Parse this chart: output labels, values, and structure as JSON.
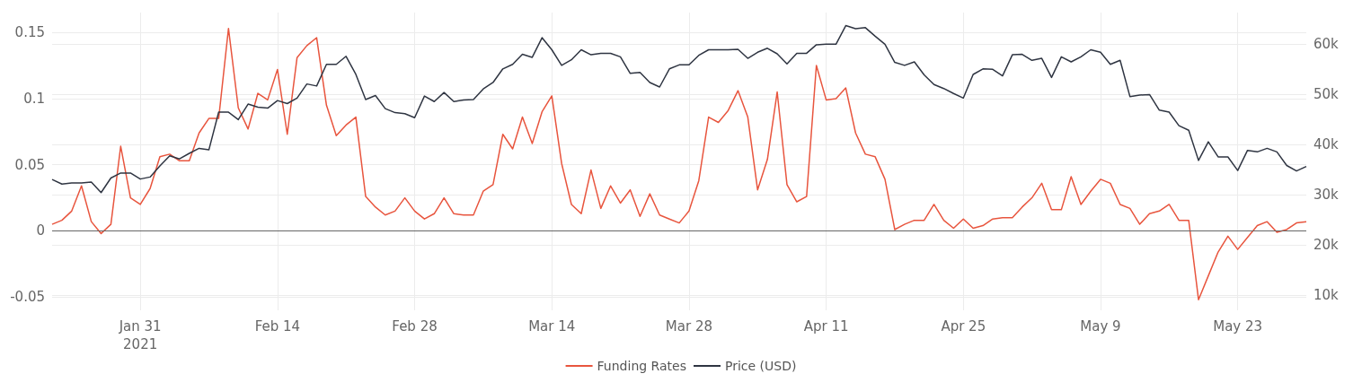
{
  "chart_data": {
    "type": "line",
    "x": [
      "2021-01-22",
      "2021-01-23",
      "2021-01-24",
      "2021-01-25",
      "2021-01-26",
      "2021-01-27",
      "2021-01-28",
      "2021-01-29",
      "2021-01-30",
      "2021-01-31",
      "2021-02-01",
      "2021-02-02",
      "2021-02-03",
      "2021-02-04",
      "2021-02-05",
      "2021-02-06",
      "2021-02-07",
      "2021-02-08",
      "2021-02-09",
      "2021-02-10",
      "2021-02-11",
      "2021-02-12",
      "2021-02-13",
      "2021-02-14",
      "2021-02-15",
      "2021-02-16",
      "2021-02-17",
      "2021-02-18",
      "2021-02-19",
      "2021-02-20",
      "2021-02-21",
      "2021-02-22",
      "2021-02-23",
      "2021-02-24",
      "2021-02-25",
      "2021-02-26",
      "2021-02-27",
      "2021-02-28",
      "2021-03-01",
      "2021-03-02",
      "2021-03-03",
      "2021-03-04",
      "2021-03-05",
      "2021-03-06",
      "2021-03-07",
      "2021-03-08",
      "2021-03-09",
      "2021-03-10",
      "2021-03-11",
      "2021-03-12",
      "2021-03-13",
      "2021-03-14",
      "2021-03-15",
      "2021-03-16",
      "2021-03-17",
      "2021-03-18",
      "2021-03-19",
      "2021-03-20",
      "2021-03-21",
      "2021-03-22",
      "2021-03-23",
      "2021-03-24",
      "2021-03-25",
      "2021-03-26",
      "2021-03-27",
      "2021-03-28",
      "2021-03-29",
      "2021-03-30",
      "2021-03-31",
      "2021-04-01",
      "2021-04-02",
      "2021-04-03",
      "2021-04-04",
      "2021-04-05",
      "2021-04-06",
      "2021-04-07",
      "2021-04-08",
      "2021-04-09",
      "2021-04-10",
      "2021-04-11",
      "2021-04-12",
      "2021-04-13",
      "2021-04-14",
      "2021-04-15",
      "2021-04-16",
      "2021-04-17",
      "2021-04-18",
      "2021-04-19",
      "2021-04-20",
      "2021-04-21",
      "2021-04-22",
      "2021-04-23",
      "2021-04-24",
      "2021-04-25",
      "2021-04-26",
      "2021-04-27",
      "2021-04-28",
      "2021-04-29",
      "2021-04-30",
      "2021-05-01",
      "2021-05-02",
      "2021-05-03",
      "2021-05-04",
      "2021-05-05",
      "2021-05-06",
      "2021-05-07",
      "2021-05-08",
      "2021-05-09",
      "2021-05-10",
      "2021-05-11",
      "2021-05-12",
      "2021-05-13",
      "2021-05-14",
      "2021-05-15",
      "2021-05-16",
      "2021-05-17",
      "2021-05-18",
      "2021-05-19",
      "2021-05-20",
      "2021-05-21",
      "2021-05-22",
      "2021-05-23",
      "2021-05-24",
      "2021-05-25",
      "2021-05-26",
      "2021-05-27",
      "2021-05-28",
      "2021-05-29",
      "2021-05-30"
    ],
    "series": [
      {
        "name": "Funding Rates",
        "color": "#e8553e",
        "values": [
          0.005,
          0.008,
          0.015,
          0.034,
          0.007,
          -0.002,
          0.005,
          0.064,
          0.025,
          0.02,
          0.032,
          0.056,
          0.058,
          0.053,
          0.053,
          0.074,
          0.085,
          0.085,
          0.153,
          0.093,
          0.077,
          0.104,
          0.099,
          0.122,
          0.073,
          0.131,
          0.14,
          0.146,
          0.095,
          0.072,
          0.08,
          0.086,
          0.026,
          0.018,
          0.012,
          0.015,
          0.025,
          0.015,
          0.009,
          0.013,
          0.025,
          0.013,
          0.012,
          0.012,
          0.03,
          0.035,
          0.073,
          0.062,
          0.086,
          0.066,
          0.09,
          0.102,
          0.051,
          0.02,
          0.013,
          0.046,
          0.017,
          0.034,
          0.021,
          0.031,
          0.011,
          0.028,
          0.012,
          0.009,
          0.006,
          0.015,
          0.038,
          0.086,
          0.082,
          0.091,
          0.106,
          0.086,
          0.031,
          0.054,
          0.105,
          0.035,
          0.022,
          0.026,
          0.125,
          0.099,
          0.1,
          0.108,
          0.074,
          0.058,
          0.056,
          0.039,
          0.001,
          0.005,
          0.008,
          0.008,
          0.02,
          0.008,
          0.002,
          0.009,
          0.002,
          0.004,
          0.009,
          0.01,
          0.01,
          0.018,
          0.025,
          0.036,
          0.016,
          0.016,
          0.041,
          0.02,
          0.03,
          0.039,
          0.036,
          0.02,
          0.017,
          0.005,
          0.013,
          0.015,
          0.02,
          0.008,
          0.008,
          -0.052,
          -0.034,
          -0.016,
          -0.004,
          -0.014,
          -0.005,
          0.004,
          0.007,
          -0.001,
          0.001,
          0.006,
          0.007
        ]
      },
      {
        "name": "Price (USD)",
        "color": "#2f3542",
        "axis": "y2",
        "values": [
          33000,
          32100,
          32300,
          32300,
          32500,
          30400,
          33300,
          34300,
          34300,
          33100,
          33500,
          35700,
          37700,
          37100,
          38200,
          39200,
          38900,
          46400,
          46400,
          44900,
          48000,
          47400,
          47200,
          48700,
          48100,
          49200,
          52000,
          51600,
          55900,
          55900,
          57500,
          53900,
          48900,
          49700,
          47100,
          46300,
          46100,
          45300,
          49600,
          48500,
          50300,
          48500,
          48800,
          48900,
          51000,
          52300,
          55000,
          55900,
          57900,
          57300,
          61200,
          58800,
          55700,
          56800,
          58800,
          57800,
          58100,
          58100,
          57400,
          54100,
          54300,
          52300,
          51400,
          55000,
          55800,
          55800,
          57700,
          58800,
          58800,
          58800,
          58900,
          57100,
          58300,
          59100,
          58000,
          56000,
          58100,
          58100,
          59800,
          59900,
          59900,
          63600,
          63000,
          63200,
          61500,
          59900,
          56300,
          55700,
          56400,
          53800,
          51900,
          51100,
          50100,
          49200,
          53900,
          55000,
          54900,
          53600,
          57800,
          57900,
          56700,
          57100,
          53300,
          57400,
          56400,
          57400,
          58800,
          58300,
          55900,
          56700,
          49500,
          49800,
          49900,
          46800,
          46400,
          43700,
          42800,
          36800,
          40500,
          37500,
          37500,
          34800,
          38800,
          38500,
          39200,
          38500,
          35800,
          34700,
          35600
        ]
      }
    ],
    "xlim": [
      "2021-01-22",
      "2021-05-30"
    ],
    "xticks": [
      {
        "value": "2021-01-31",
        "label": "Jan 31\n2021"
      },
      {
        "value": "2021-02-14",
        "label": "Feb 14"
      },
      {
        "value": "2021-02-28",
        "label": "Feb 28"
      },
      {
        "value": "2021-03-14",
        "label": "Mar 14"
      },
      {
        "value": "2021-03-28",
        "label": "Mar 28"
      },
      {
        "value": "2021-04-11",
        "label": "Apr 11"
      },
      {
        "value": "2021-04-25",
        "label": "Apr 25"
      },
      {
        "value": "2021-05-09",
        "label": "May 9"
      },
      {
        "value": "2021-05-23",
        "label": "May 23"
      }
    ],
    "ylim": [
      -0.06,
      0.165
    ],
    "yticks": [
      -0.05,
      0,
      0.05,
      0.1,
      0.15
    ],
    "y2lim": [
      7000,
      66200
    ],
    "y2ticks": [
      {
        "value": 10000,
        "label": "10k"
      },
      {
        "value": 20000,
        "label": "20k"
      },
      {
        "value": 30000,
        "label": "30k"
      },
      {
        "value": 40000,
        "label": "40k"
      },
      {
        "value": 50000,
        "label": "50k"
      },
      {
        "value": 60000,
        "label": "60k"
      }
    ],
    "ref_lines": [
      {
        "axis": "y",
        "value": 0,
        "color": "#666666"
      }
    ],
    "grid": true,
    "legend": "bottom",
    "marker": "none"
  }
}
